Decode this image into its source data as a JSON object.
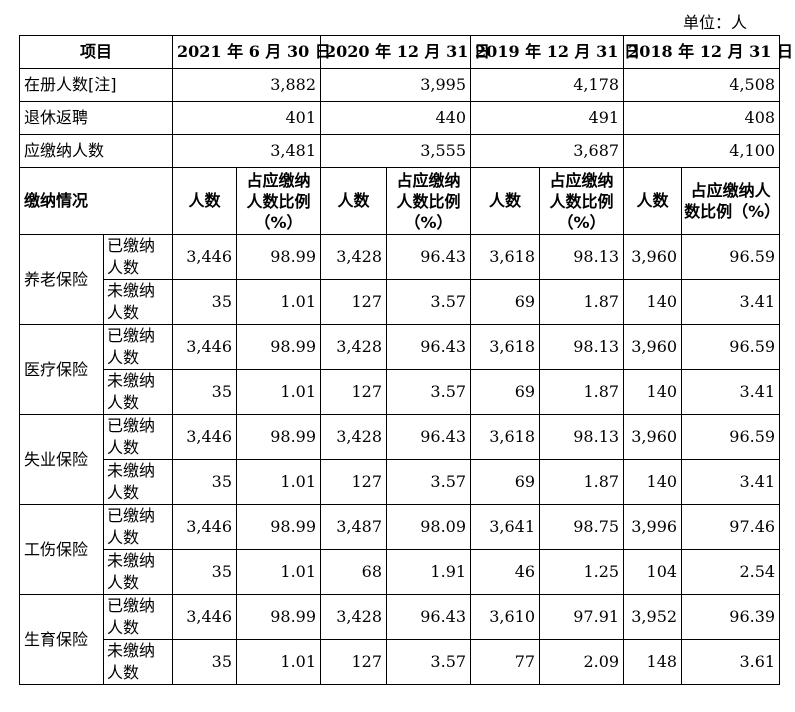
{
  "unit_label": "单位：人",
  "header": {
    "item": "项目",
    "dates": [
      "2021 年 6 月 30 日",
      "2020 年 12 月 31 日",
      "2019 年 12 月 31 日",
      "2018 年 12 月 31 日"
    ]
  },
  "summary": [
    {
      "label": "在册人数[注]",
      "values": [
        "3,882",
        "3,995",
        "4,178",
        "4,508"
      ]
    },
    {
      "label": "退休返聘",
      "values": [
        "401",
        "440",
        "491",
        "408"
      ]
    },
    {
      "label": "应缴纳人数",
      "values": [
        "3,481",
        "3,555",
        "3,687",
        "4,100"
      ]
    }
  ],
  "sub_header": {
    "label": "缴纳情况",
    "count": "人数",
    "ratio": "占应缴纳人数比例（%）",
    "ratio_last": "占应缴纳人数比例（%）"
  },
  "insurance": [
    {
      "category": "养老保险",
      "rows": [
        {
          "status": "已缴纳人数",
          "values": [
            "3,446",
            "98.99",
            "3,428",
            "96.43",
            "3,618",
            "98.13",
            "3,960",
            "96.59"
          ]
        },
        {
          "status": "未缴纳人数",
          "values": [
            "35",
            "1.01",
            "127",
            "3.57",
            "69",
            "1.87",
            "140",
            "3.41"
          ]
        }
      ]
    },
    {
      "category": "医疗保险",
      "rows": [
        {
          "status": "已缴纳人数",
          "values": [
            "3,446",
            "98.99",
            "3,428",
            "96.43",
            "3,618",
            "98.13",
            "3,960",
            "96.59"
          ]
        },
        {
          "status": "未缴纳人数",
          "values": [
            "35",
            "1.01",
            "127",
            "3.57",
            "69",
            "1.87",
            "140",
            "3.41"
          ]
        }
      ]
    },
    {
      "category": "失业保险",
      "rows": [
        {
          "status": "已缴纳人数",
          "values": [
            "3,446",
            "98.99",
            "3,428",
            "96.43",
            "3,618",
            "98.13",
            "3,960",
            "96.59"
          ]
        },
        {
          "status": "未缴纳人数",
          "values": [
            "35",
            "1.01",
            "127",
            "3.57",
            "69",
            "1.87",
            "140",
            "3.41"
          ]
        }
      ]
    },
    {
      "category": "工伤保险",
      "rows": [
        {
          "status": "已缴纳人数",
          "values": [
            "3,446",
            "98.99",
            "3,487",
            "98.09",
            "3,641",
            "98.75",
            "3,996",
            "97.46"
          ]
        },
        {
          "status": "未缴纳人数",
          "values": [
            "35",
            "1.01",
            "68",
            "1.91",
            "46",
            "1.25",
            "104",
            "2.54"
          ]
        }
      ]
    },
    {
      "category": "生育保险",
      "rows": [
        {
          "status": "已缴纳人数",
          "values": [
            "3,446",
            "98.99",
            "3,428",
            "96.43",
            "3,610",
            "97.91",
            "3,952",
            "96.39"
          ]
        },
        {
          "status": "未缴纳人数",
          "values": [
            "35",
            "1.01",
            "127",
            "3.57",
            "77",
            "2.09",
            "148",
            "3.61"
          ]
        }
      ]
    }
  ]
}
